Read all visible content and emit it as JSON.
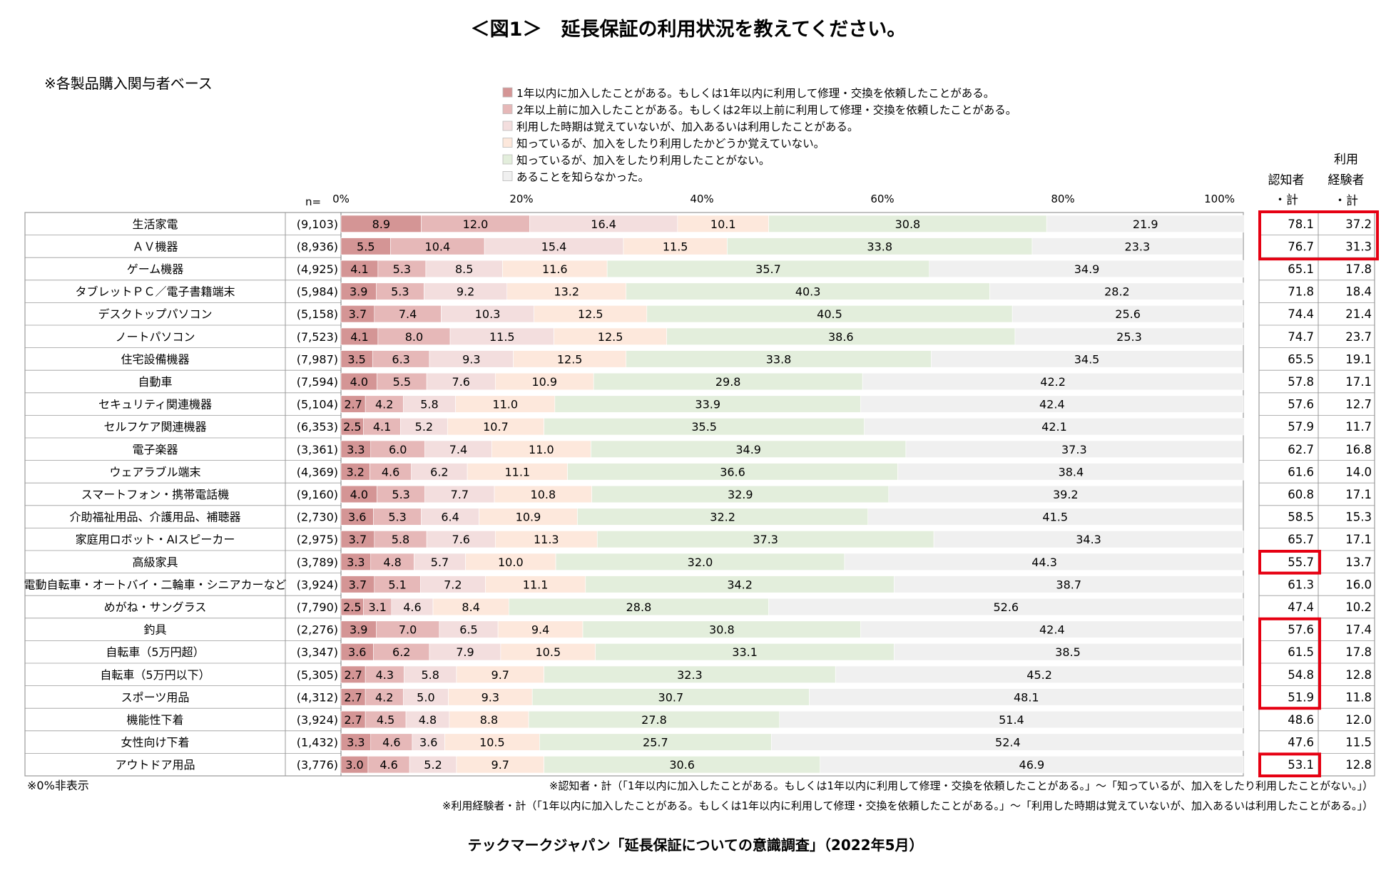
{
  "colors": {
    "series": [
      "#d49595",
      "#e6b8b8",
      "#f3dede",
      "#fde8dc",
      "#e3eedc",
      "#f0f0f0"
    ],
    "border": "#9a9a9a",
    "highlight": "#e60012"
  },
  "chart_data": {
    "type": "bar",
    "orientation": "horizontal",
    "stacked": true,
    "title": "＜図1＞　延長保証の利用状況を教えてください。",
    "base_note": "※各製品購入関与者ベース",
    "n_label": "n=",
    "xlim": [
      0,
      100
    ],
    "x_ticks": [
      "0%",
      "20%",
      "40%",
      "60%",
      "80%",
      "100%"
    ],
    "legend": [
      "1年以内に加入したことがある。もしくは1年以内に利用して修理・交換を依頼したことがある。",
      "2年以上前に加入したことがある。もしくは2年以上前に利用して修理・交換を依頼したことがある。",
      "利用した時期は覚えていないが、加入あるいは利用したことがある。",
      "知っているが、加入をしたり利用したかどうか覚えていない。",
      "知っているが、加入をしたり利用したことがない。",
      "あることを知らなかった。"
    ],
    "col_headers": {
      "aware": [
        "認知者",
        "・計"
      ],
      "used": [
        "利用",
        "経験者",
        "・計"
      ]
    },
    "categories": [
      "生活家電",
      "ＡＶ機器",
      "ゲーム機器",
      "タブレットＰＣ／電子書籍端末",
      "デスクトップパソコン",
      "ノートパソコン",
      "住宅設備機器",
      "自動車",
      "セキュリティ関連機器",
      "セルフケア関連機器",
      "電子楽器",
      "ウェアラブル端末",
      "スマートフォン・携帯電話機",
      "介助福祉用品、介護用品、補聴器",
      "家庭用ロボット・AIスピーカー",
      "高級家具",
      "電動自転車・オートバイ・二輪車・シニアカーなど",
      "めがね・サングラス",
      "釣具",
      "自転車（5万円超）",
      "自転車（5万円以下）",
      "スポーツ用品",
      "機能性下着",
      "女性向け下着",
      "アウトドア用品"
    ],
    "n": [
      "(9,103)",
      "(8,936)",
      "(4,925)",
      "(5,984)",
      "(5,158)",
      "(7,523)",
      "(7,987)",
      "(7,594)",
      "(5,104)",
      "(6,353)",
      "(3,361)",
      "(4,369)",
      "(9,160)",
      "(2,730)",
      "(2,975)",
      "(3,789)",
      "(3,924)",
      "(7,790)",
      "(2,276)",
      "(3,347)",
      "(5,305)",
      "(4,312)",
      "(3,924)",
      "(1,432)",
      "(3,776)"
    ],
    "series": [
      {
        "name": "1年以内に加入したことがある。もしくは1年以内に利用して修理・交換を依頼したことがある。",
        "values": [
          8.9,
          5.5,
          4.1,
          3.9,
          3.7,
          4.1,
          3.5,
          4.0,
          2.7,
          2.5,
          3.3,
          3.2,
          4.0,
          3.6,
          3.7,
          3.3,
          3.7,
          2.5,
          3.9,
          3.6,
          2.7,
          2.7,
          2.7,
          3.3,
          3.0
        ]
      },
      {
        "name": "2年以上前に加入したことがある。もしくは2年以上前に利用して修理・交換を依頼したことがある。",
        "values": [
          12.0,
          10.4,
          5.3,
          5.3,
          7.4,
          8.0,
          6.3,
          5.5,
          4.2,
          4.1,
          6.0,
          4.6,
          5.3,
          5.3,
          5.8,
          4.8,
          5.1,
          3.1,
          7.0,
          6.2,
          4.3,
          4.2,
          4.5,
          4.6,
          4.6
        ]
      },
      {
        "name": "利用した時期は覚えていないが、加入あるいは利用したことがある。",
        "values": [
          16.4,
          15.4,
          8.5,
          9.2,
          10.3,
          11.5,
          9.3,
          7.6,
          5.8,
          5.2,
          7.4,
          6.2,
          7.7,
          6.4,
          7.6,
          5.7,
          7.2,
          4.6,
          6.5,
          7.9,
          5.8,
          5.0,
          4.8,
          3.6,
          5.2
        ]
      },
      {
        "name": "知っているが、加入をしたり利用したかどうか覚えていない。",
        "values": [
          10.1,
          11.5,
          11.6,
          13.2,
          12.5,
          12.5,
          12.5,
          10.9,
          11.0,
          10.7,
          11.0,
          11.1,
          10.8,
          10.9,
          11.3,
          10.0,
          11.1,
          8.4,
          9.4,
          10.5,
          9.7,
          9.3,
          8.8,
          10.5,
          9.7
        ]
      },
      {
        "name": "知っているが、加入をしたり利用したことがない。",
        "values": [
          30.8,
          33.8,
          35.7,
          40.3,
          40.5,
          38.6,
          33.8,
          29.8,
          33.9,
          35.5,
          34.9,
          36.6,
          32.9,
          32.2,
          37.3,
          32.0,
          34.2,
          28.8,
          30.8,
          33.1,
          32.3,
          30.7,
          27.8,
          25.7,
          30.6
        ]
      },
      {
        "name": "あることを知らなかった。",
        "values": [
          21.9,
          23.3,
          34.9,
          28.2,
          25.6,
          25.3,
          34.5,
          42.2,
          42.4,
          42.1,
          37.3,
          38.4,
          39.2,
          41.5,
          34.3,
          44.3,
          38.7,
          52.6,
          42.4,
          38.5,
          45.2,
          48.1,
          51.4,
          52.4,
          46.9
        ]
      }
    ],
    "aware_total": [
      "78.1",
      "76.7",
      "65.1",
      "71.8",
      "74.4",
      "74.7",
      "65.5",
      "57.8",
      "57.6",
      "57.9",
      "62.7",
      "61.6",
      "60.8",
      "58.5",
      "65.7",
      "55.7",
      "61.3",
      "47.4",
      "57.6",
      "61.5",
      "54.8",
      "51.9",
      "48.6",
      "47.6",
      "53.1"
    ],
    "used_total": [
      "37.2",
      "31.3",
      "17.8",
      "18.4",
      "21.4",
      "23.7",
      "19.1",
      "17.1",
      "12.7",
      "11.7",
      "16.8",
      "14.0",
      "17.1",
      "15.3",
      "17.1",
      "13.7",
      "16.0",
      "10.2",
      "17.4",
      "17.8",
      "12.8",
      "11.8",
      "12.0",
      "11.5",
      "12.8"
    ],
    "highlight_both_rows": [
      0,
      1
    ],
    "highlight_aware_rows": [
      15,
      18,
      19,
      20,
      21,
      24
    ],
    "footnotes": {
      "zero": "※0%非表示",
      "aware": "※認知者・計（「1年以内に加入したことがある。もしくは1年以内に利用して修理・交換を依頼したことがある。」～「知っているが、加入をしたり利用したことがない。」）",
      "used": "※利用経験者・計（「1年以内に加入したことがある。もしくは1年以内に利用して修理・交換を依頼したことがある。」～「利用した時期は覚えていないが、加入あるいは利用したことがある。」）"
    },
    "source": "テックマークジャパン「延長保証についての意識調査」（2022年5月）"
  }
}
